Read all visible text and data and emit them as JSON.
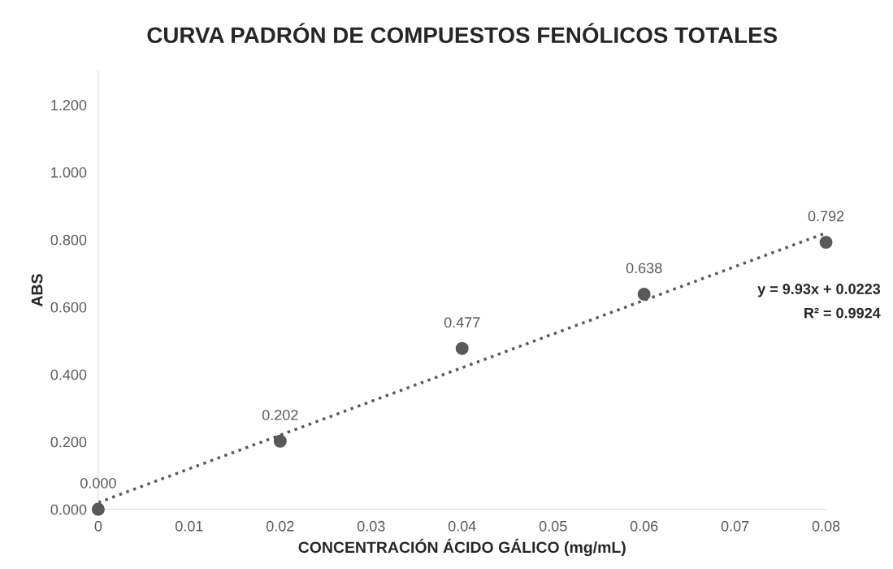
{
  "chart_data": {
    "type": "scatter",
    "title": "CURVA PADRÓN DE COMPUESTOS FENÓLICOS TOTALES",
    "xlabel": "CONCENTRACIÓN ÁCIDO GÁLICO (mg/mL)",
    "ylabel": "ABS",
    "x": [
      0,
      0.02,
      0.04,
      0.06,
      0.08
    ],
    "series": [
      {
        "color": "#595959",
        "marker": "circle",
        "values": [
          0,
          0.202,
          0.477,
          0.638,
          0.792
        ],
        "value_labels": [
          "0.000",
          "0.202",
          "0.477",
          "0.638",
          "0.792"
        ]
      },
      {
        "type": "line",
        "color": "#595959",
        "line_style": "dotted",
        "marker": "none",
        "x": [
          0,
          0.08
        ],
        "values": [
          0.02,
          0.82
        ]
      }
    ],
    "annotations": [
      "y = 9.93x + 0.0223",
      "R² = 0.9924"
    ],
    "xlim": [
      0,
      0.08
    ],
    "xticks": [
      0,
      0.01,
      0.02,
      0.03,
      0.04,
      0.05,
      0.06,
      0.07,
      0.08
    ],
    "ylim": [
      0,
      1.3
    ],
    "yticks": [
      {
        "value": 0,
        "label": "0.000"
      },
      {
        "value": 0.2,
        "label": "0.200"
      },
      {
        "value": 0.4,
        "label": "0.400"
      },
      {
        "value": 0.6,
        "label": "0.600"
      },
      {
        "value": 0.8,
        "label": "0.800"
      },
      {
        "value": 1.0,
        "label": "1.000"
      },
      {
        "value": 1.2,
        "label": "1.200"
      }
    ],
    "grid": false,
    "legend": false
  }
}
